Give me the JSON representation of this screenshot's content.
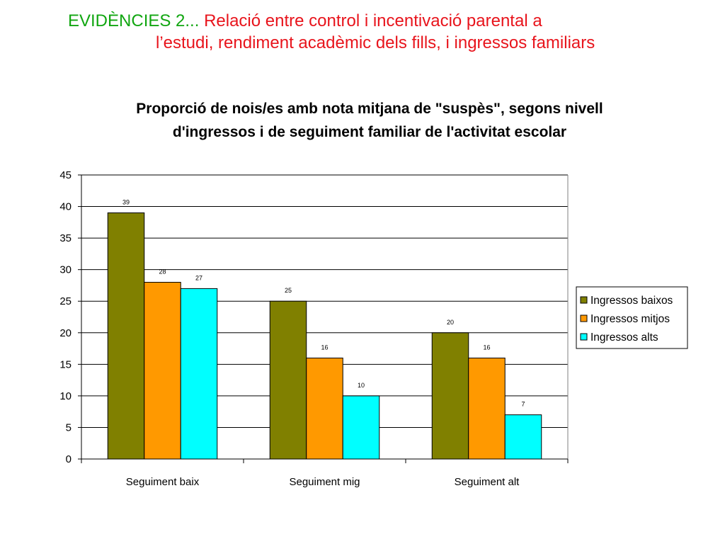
{
  "slide": {
    "title_lead": "EVIDÈNCIES 2...",
    "title_line1": "Relació entre control i incentivació parental a",
    "title_line2": "l’estudi, rendiment acadèmic dels fills, i ingressos familiars"
  },
  "chart_data": {
    "type": "bar",
    "title_lines": [
      "Proporció de nois/es amb nota mitjana de \"suspès\", segons nivell",
      "d'ingressos i de seguiment familiar de l'activitat escolar"
    ],
    "categories": [
      "Seguiment baix",
      "Seguiment mig",
      "Seguiment alt"
    ],
    "series": [
      {
        "name": "Ingressos baixos",
        "values": [
          39,
          25,
          20
        ],
        "color": "#808000"
      },
      {
        "name": "Ingressos mitjos",
        "values": [
          28,
          16,
          16
        ],
        "color": "#ff9900"
      },
      {
        "name": "Ingressos alts",
        "values": [
          27,
          10,
          7
        ],
        "color": "#00ffff"
      }
    ],
    "ylim": [
      0,
      45
    ],
    "yticks": [
      0,
      5,
      10,
      15,
      20,
      25,
      30,
      35,
      40,
      45
    ],
    "grid": true,
    "legend_position": "right",
    "show_data_labels": true
  }
}
